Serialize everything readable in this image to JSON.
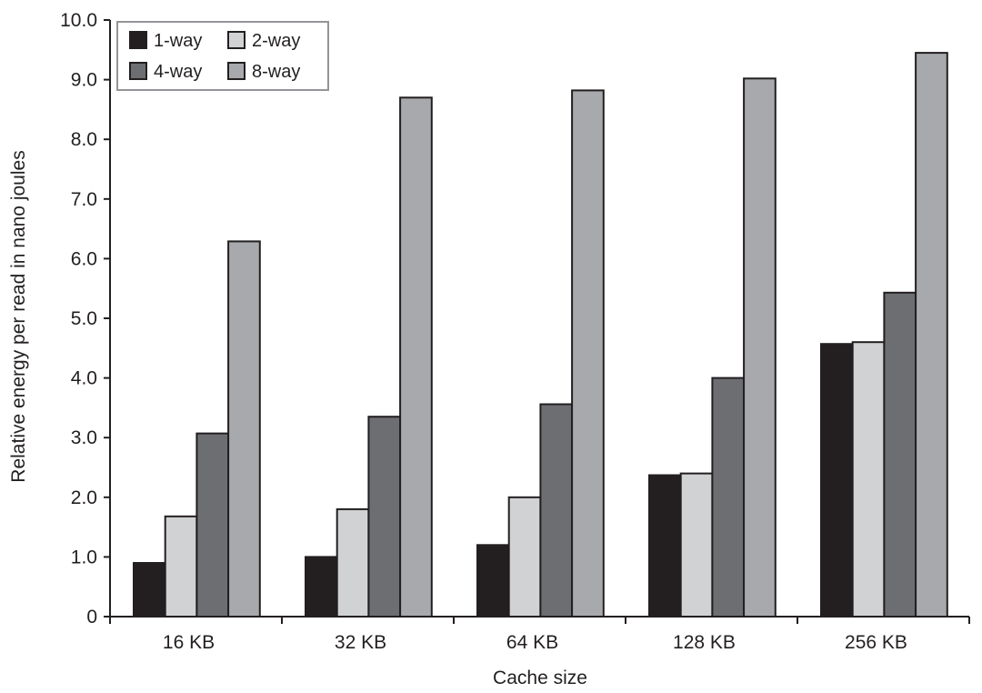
{
  "chart_data": {
    "type": "bar",
    "title": "",
    "xlabel": "Cache size",
    "ylabel": "Relative energy per read in nano joules",
    "categories": [
      "16 KB",
      "32 KB",
      "64 KB",
      "128 KB",
      "256 KB"
    ],
    "series": [
      {
        "name": "1-way",
        "color": "#231f20",
        "values": [
          0.9,
          1.0,
          1.2,
          2.37,
          4.57
        ]
      },
      {
        "name": "2-way",
        "color": "#d1d2d4",
        "values": [
          1.68,
          1.8,
          2.0,
          2.4,
          4.6
        ]
      },
      {
        "name": "4-way",
        "color": "#6d6e71",
        "values": [
          3.07,
          3.35,
          3.56,
          4.0,
          5.43
        ]
      },
      {
        "name": "8-way",
        "color": "#a7a9ac",
        "values": [
          6.29,
          8.7,
          8.82,
          9.02,
          9.45
        ]
      }
    ],
    "ylim": [
      0,
      10
    ],
    "yticks": [
      "0",
      "1.0",
      "2.0",
      "3.0",
      "4.0",
      "5.0",
      "6.0",
      "7.0",
      "8.0",
      "9.0",
      "10.0"
    ],
    "grid": false,
    "legend_position": "upper-left"
  },
  "legend": {
    "items": [
      {
        "label": "1-way",
        "color": "#231f20"
      },
      {
        "label": "2-way",
        "color": "#d1d2d4"
      },
      {
        "label": "4-way",
        "color": "#6d6e71"
      },
      {
        "label": "8-way",
        "color": "#a7a9ac"
      }
    ]
  }
}
